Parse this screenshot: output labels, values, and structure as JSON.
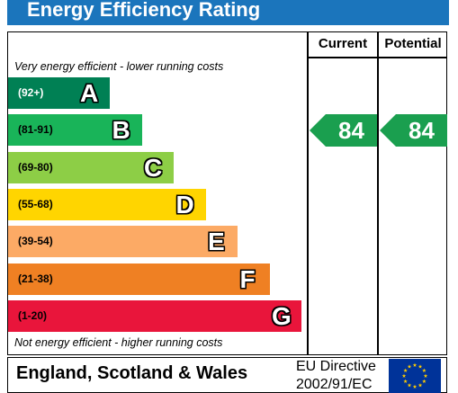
{
  "title": "Energy Efficiency Rating",
  "columns": {
    "current": "Current",
    "potential": "Potential"
  },
  "notes": {
    "top": "Very energy efficient - lower running costs",
    "bottom": "Not energy efficient - higher running costs"
  },
  "footer": {
    "country": "England, Scotland & Wales",
    "directive_line1": "EU Directive",
    "directive_line2": "2002/91/EC"
  },
  "colors": {
    "title_bar": "#1b75bc",
    "rating_arrow": "#1a9f4f",
    "eu_flag_blue": "#003399",
    "eu_flag_stars": "#ffcc00"
  },
  "chart_data": {
    "type": "bar",
    "title": "Energy Efficiency Rating",
    "categories": [
      "A",
      "B",
      "C",
      "D",
      "E",
      "F",
      "G"
    ],
    "bands": [
      {
        "letter": "A",
        "range": "(92+)",
        "color": "#008054"
      },
      {
        "letter": "B",
        "range": "(81-91)",
        "color": "#19b459"
      },
      {
        "letter": "C",
        "range": "(69-80)",
        "color": "#8dce46"
      },
      {
        "letter": "D",
        "range": "(55-68)",
        "color": "#ffd500"
      },
      {
        "letter": "E",
        "range": "(39-54)",
        "color": "#fcaa65"
      },
      {
        "letter": "F",
        "range": "(21-38)",
        "color": "#ef8023"
      },
      {
        "letter": "G",
        "range": "(1-20)",
        "color": "#e9153b"
      }
    ],
    "series": [
      {
        "name": "Current",
        "value": 84,
        "band": "B"
      },
      {
        "name": "Potential",
        "value": 84,
        "band": "B"
      }
    ]
  }
}
